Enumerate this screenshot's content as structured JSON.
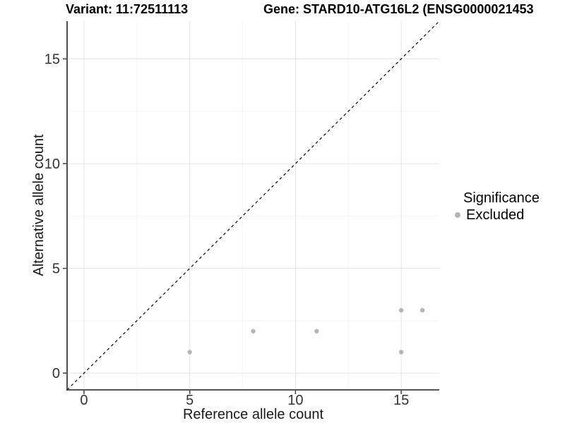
{
  "header": {
    "variant_title": "Variant: 11:72511113",
    "gene_title": "Gene: STARD10-ATG16L2 (ENSG0000021453"
  },
  "chart_data": {
    "type": "scatter",
    "xlabel": "Reference allele count",
    "ylabel": "Alternative allele count",
    "points": [
      {
        "x": 5,
        "y": 1
      },
      {
        "x": 8,
        "y": 2
      },
      {
        "x": 11,
        "y": 2
      },
      {
        "x": 15,
        "y": 1
      },
      {
        "x": 15,
        "y": 3
      },
      {
        "x": 16,
        "y": 3
      }
    ],
    "series_label": "Excluded",
    "x_ticks": [
      0,
      5,
      10,
      15
    ],
    "y_ticks": [
      0,
      5,
      10,
      15
    ],
    "x_minor_ticks": [
      2.5,
      7.5,
      12.5
    ],
    "y_minor_ticks": [
      2.5,
      7.5,
      12.5
    ],
    "xlim": [
      -0.8,
      16.8
    ],
    "ylim": [
      -0.8,
      16.8
    ],
    "grid": true,
    "legend_position": "right",
    "identity_line": {
      "style": "dashed",
      "color": "#000000"
    },
    "colors": {
      "point": "#b5b5b5",
      "grid_major": "#e4e4e4",
      "grid_minor": "#f3f3f3",
      "axis": "#3d3d3d",
      "tick_text": "#333333"
    }
  },
  "legend": {
    "title": "Significance",
    "items": [
      {
        "label": "Excluded",
        "color": "#b5b5b5"
      }
    ]
  }
}
